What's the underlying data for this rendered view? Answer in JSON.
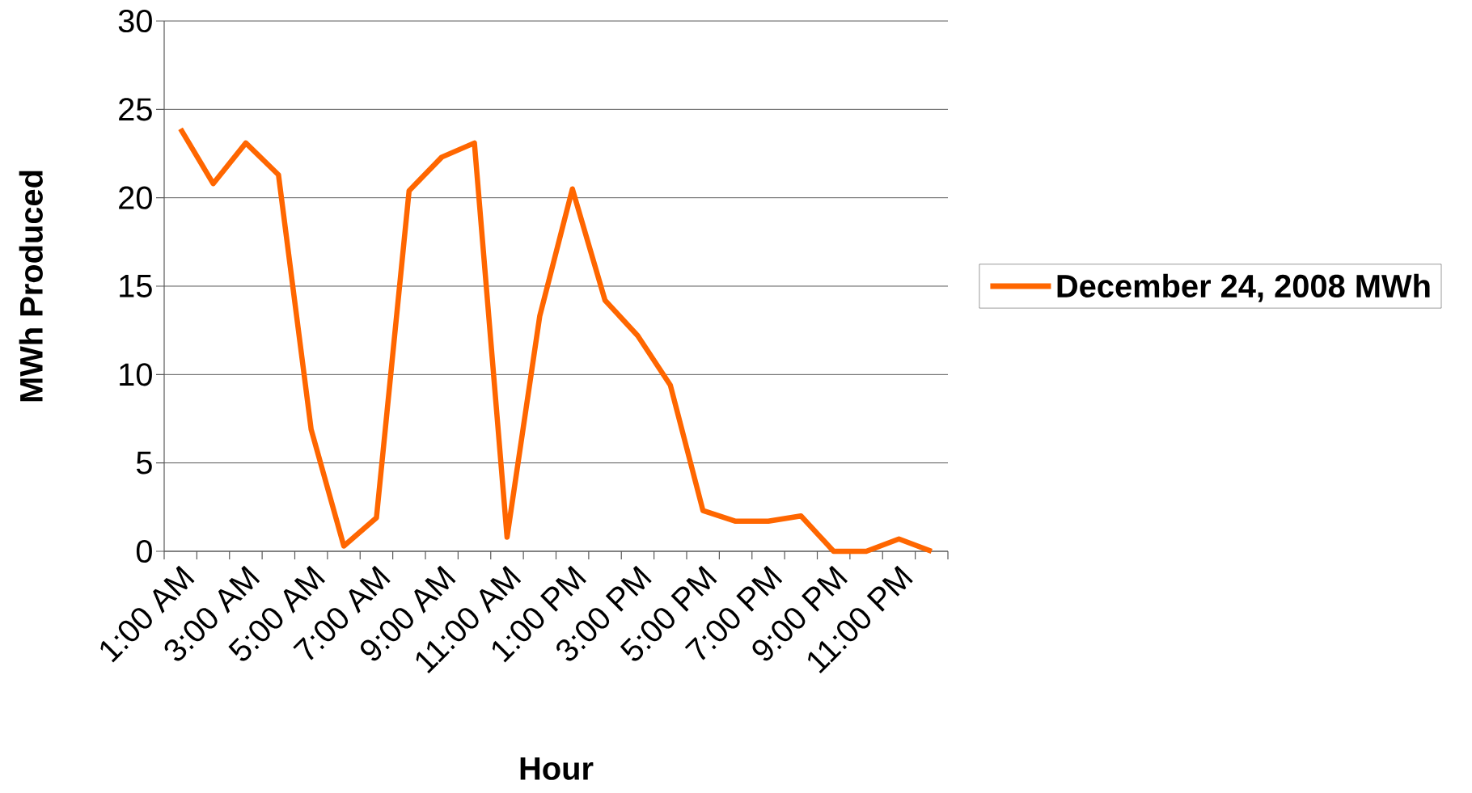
{
  "chart_data": {
    "type": "line",
    "xlabel": "Hour",
    "ylabel": "MWh Produced",
    "categories": [
      "1:00 AM",
      null,
      "3:00 AM",
      null,
      "5:00 AM",
      null,
      "7:00 AM",
      null,
      "9:00 AM",
      null,
      "11:00 AM",
      null,
      "1:00 PM",
      null,
      "3:00 PM",
      null,
      "5:00 PM",
      null,
      "7:00 PM",
      null,
      "9:00 PM",
      null,
      "11:00 PM",
      null
    ],
    "series": [
      {
        "name": "December 24, 2008 MWh",
        "color": "#ff6600",
        "values": [
          23.9,
          20.8,
          23.1,
          21.3,
          6.9,
          0.3,
          1.9,
          20.4,
          22.3,
          23.1,
          0.8,
          13.3,
          20.5,
          14.2,
          12.2,
          9.4,
          2.3,
          1.7,
          1.7,
          2.0,
          0,
          0,
          0.7,
          0
        ]
      }
    ],
    "ylim": [
      0,
      30
    ],
    "yticks": [
      0,
      5,
      10,
      15,
      20,
      25,
      30
    ],
    "grid": "y",
    "legend": "right",
    "marker": "none",
    "line_style": "solid"
  }
}
